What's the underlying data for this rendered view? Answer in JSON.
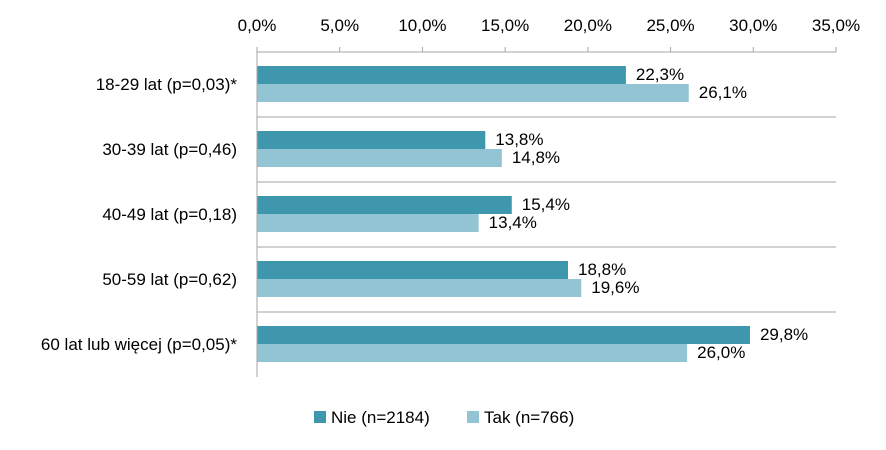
{
  "chart_data": {
    "type": "bar",
    "orientation": "horizontal",
    "categories": [
      "18-29 lat (p=0,03)*",
      "30-39 lat (p=0,46)",
      "40-49 lat (p=0,18)",
      "50-59 lat (p=0,62)",
      "60 lat lub więcej (p=0,05)*"
    ],
    "series": [
      {
        "name": "Nie (n=2184)",
        "color": "#3f97ad",
        "values": [
          22.3,
          13.8,
          15.4,
          18.8,
          29.8
        ],
        "labels": [
          "22,3%",
          "13,8%",
          "15,4%",
          "18,8%",
          "29,8%"
        ]
      },
      {
        "name": "Tak (n=766)",
        "color": "#93c4d4",
        "values": [
          26.1,
          14.8,
          13.4,
          19.6,
          26.0
        ],
        "labels": [
          "26,1%",
          "14,8%",
          "13,4%",
          "19,6%",
          "26,0%"
        ]
      }
    ],
    "xlim": [
      0,
      35
    ],
    "xticks": [
      0,
      5,
      10,
      15,
      20,
      25,
      30,
      35
    ],
    "xtick_labels": [
      "0,0%",
      "5,0%",
      "10,0%",
      "15,0%",
      "20,0%",
      "25,0%",
      "30,0%",
      "35,0%"
    ],
    "axis_position": "top",
    "category_separators": true,
    "legend_position": "bottom",
    "title": "",
    "xlabel": "",
    "ylabel": ""
  }
}
